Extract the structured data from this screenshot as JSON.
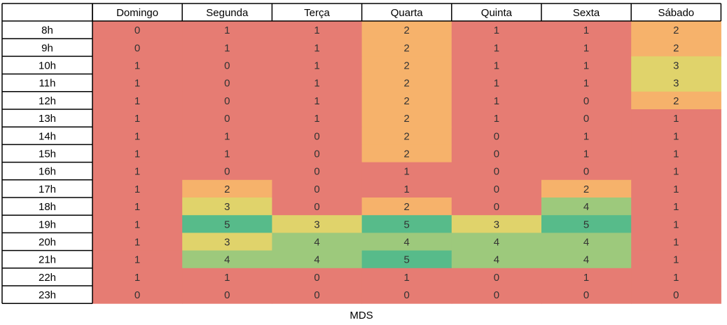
{
  "chart_data": {
    "type": "heatmap",
    "title": "",
    "caption": "MDS",
    "columns": [
      "Domingo",
      "Segunda",
      "Terça",
      "Quarta",
      "Quinta",
      "Sexta",
      "Sábado"
    ],
    "rows": [
      "8h",
      "9h",
      "10h",
      "11h",
      "12h",
      "13h",
      "14h",
      "15h",
      "16h",
      "17h",
      "18h",
      "19h",
      "20h",
      "21h",
      "22h",
      "23h"
    ],
    "values": [
      [
        0,
        1,
        1,
        2,
        1,
        1,
        2
      ],
      [
        0,
        1,
        1,
        2,
        1,
        1,
        2
      ],
      [
        1,
        0,
        1,
        2,
        1,
        1,
        3
      ],
      [
        1,
        0,
        1,
        2,
        1,
        1,
        3
      ],
      [
        1,
        0,
        1,
        2,
        1,
        0,
        2
      ],
      [
        1,
        0,
        1,
        2,
        1,
        0,
        1
      ],
      [
        1,
        1,
        0,
        2,
        0,
        1,
        1
      ],
      [
        1,
        1,
        0,
        2,
        0,
        1,
        1
      ],
      [
        1,
        0,
        0,
        1,
        0,
        0,
        1
      ],
      [
        1,
        2,
        0,
        1,
        0,
        2,
        1
      ],
      [
        1,
        3,
        0,
        2,
        0,
        4,
        1
      ],
      [
        1,
        5,
        3,
        5,
        3,
        5,
        1
      ],
      [
        1,
        3,
        4,
        4,
        4,
        4,
        1
      ],
      [
        1,
        4,
        4,
        5,
        4,
        4,
        1
      ],
      [
        1,
        1,
        0,
        1,
        0,
        1,
        1
      ],
      [
        0,
        0,
        0,
        0,
        0,
        0,
        0
      ]
    ],
    "color_scale": {
      "0": "#e67c73",
      "1": "#e67c73",
      "2": "#f6b26b",
      "3": "#e0d36b",
      "4": "#9dc97c",
      "5": "#57bb8a"
    }
  }
}
